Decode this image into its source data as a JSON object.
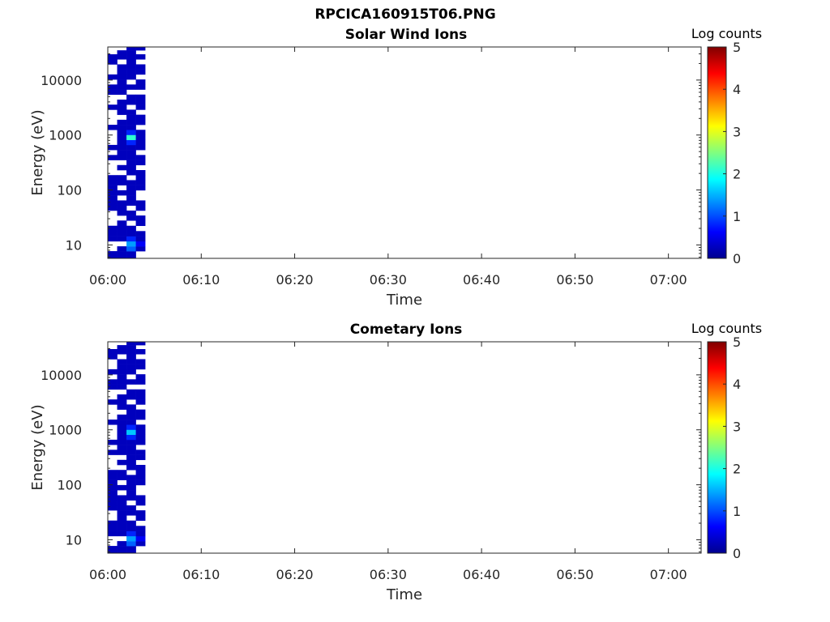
{
  "figure": {
    "title": "RPCICA160915T06.PNG"
  },
  "colorbar": {
    "label": "Log counts",
    "ticks": [
      "0",
      "1",
      "2",
      "3",
      "4",
      "5"
    ],
    "range": [
      0,
      5
    ],
    "colormap": "jet"
  },
  "chart_data": [
    {
      "type": "heatmap",
      "title": "Solar Wind Ions",
      "xlabel": "Time",
      "ylabel": "Energy (eV)",
      "x_ticks": [
        "06:00",
        "06:10",
        "06:20",
        "06:30",
        "06:40",
        "06:50",
        "07:00"
      ],
      "xlim_minutes": [
        0,
        63.5
      ],
      "y_ticks": [
        {
          "value": 10,
          "label": "10"
        },
        {
          "value": 100,
          "label": "100"
        },
        {
          "value": 1000,
          "label": "1000"
        },
        {
          "value": 10000,
          "label": "10000"
        }
      ],
      "ylim": [
        5.7,
        40000
      ],
      "yscale": "log",
      "time_bins": [
        "06:00",
        "06:01",
        "06:02",
        "06:03"
      ],
      "energy_bins_eV": [
        7,
        8.5,
        10.5,
        13,
        16,
        20,
        25,
        31,
        38,
        47,
        58,
        72,
        89,
        110,
        136,
        168,
        207,
        256,
        316,
        390,
        482,
        595,
        735,
        907,
        1120,
        1383,
        1708,
        2109,
        2604,
        3216,
        3971,
        4904,
        6056,
        7478,
        9234,
        11403,
        14081,
        17388,
        21472,
        26515,
        32743,
        37000
      ],
      "log_counts": [
        [
          0.3,
          0,
          0,
          0.3,
          0.3,
          0.3,
          0,
          0,
          0,
          0.3,
          0.3,
          0.3,
          0.3,
          0.3,
          0.3,
          0.3,
          0,
          0,
          0,
          0.3,
          0,
          0.3,
          0,
          0,
          0,
          0.3,
          0,
          0,
          0,
          0.3,
          0,
          0,
          0.3,
          0.3,
          0,
          0.3,
          0,
          0,
          0.3,
          0.3,
          0,
          0
        ],
        [
          0.3,
          0.3,
          0,
          0.3,
          0.3,
          0.3,
          0.3,
          0,
          0.3,
          0.3,
          0.3,
          0,
          0.3,
          0,
          0.3,
          0.3,
          0,
          0.3,
          0,
          0.3,
          0.3,
          0.3,
          0.3,
          0.3,
          0.3,
          0.3,
          0.3,
          0,
          0.3,
          0.3,
          0.3,
          0,
          0.3,
          0.3,
          0.3,
          0.3,
          0.3,
          0.3,
          0,
          0.3,
          0.3,
          0
        ],
        [
          0.3,
          1.1,
          1.4,
          0.8,
          0.3,
          0.3,
          0,
          0.3,
          0.3,
          0,
          0.3,
          0.3,
          0.3,
          0.3,
          0.3,
          0,
          0.3,
          0.3,
          0.3,
          0.3,
          0.3,
          0.3,
          0.8,
          2.1,
          0.8,
          0.3,
          0.3,
          0.3,
          0.3,
          0,
          0.3,
          0.3,
          0,
          0.3,
          0,
          0.3,
          0.3,
          0.3,
          0.3,
          0.3,
          0.3,
          0.3
        ],
        [
          0,
          0.3,
          0.6,
          0.3,
          0.3,
          0,
          0.3,
          0.3,
          0,
          0.3,
          0.3,
          0,
          0,
          0.3,
          0.3,
          0.3,
          0.3,
          0,
          0.3,
          0.3,
          0,
          0.3,
          0.3,
          0.3,
          0.3,
          0,
          0.3,
          0.3,
          0,
          0.3,
          0.3,
          0.3,
          0,
          0.3,
          0.3,
          0,
          0.3,
          0.3,
          0,
          0.3,
          0,
          0.3
        ]
      ]
    },
    {
      "type": "heatmap",
      "title": "Cometary Ions",
      "xlabel": "Time",
      "ylabel": "Energy (eV)",
      "x_ticks": [
        "06:00",
        "06:10",
        "06:20",
        "06:30",
        "06:40",
        "06:50",
        "07:00"
      ],
      "xlim_minutes": [
        0,
        63.5
      ],
      "y_ticks": [
        {
          "value": 10,
          "label": "10"
        },
        {
          "value": 100,
          "label": "100"
        },
        {
          "value": 1000,
          "label": "1000"
        },
        {
          "value": 10000,
          "label": "10000"
        }
      ],
      "ylim": [
        5.7,
        40000
      ],
      "yscale": "log",
      "time_bins": [
        "06:00",
        "06:01",
        "06:02",
        "06:03"
      ],
      "energy_bins_eV": [
        7,
        8.5,
        10.5,
        13,
        16,
        20,
        25,
        31,
        38,
        47,
        58,
        72,
        89,
        110,
        136,
        168,
        207,
        256,
        316,
        390,
        482,
        595,
        735,
        907,
        1120,
        1383,
        1708,
        2109,
        2604,
        3216,
        3971,
        4904,
        6056,
        7478,
        9234,
        11403,
        14081,
        17388,
        21472,
        26515,
        32743,
        37000
      ],
      "log_counts": [
        [
          0.3,
          0,
          0,
          0.3,
          0.3,
          0.3,
          0,
          0,
          0.3,
          0.3,
          0.3,
          0.3,
          0.3,
          0.3,
          0.3,
          0.3,
          0,
          0,
          0,
          0.3,
          0,
          0.3,
          0,
          0,
          0,
          0.3,
          0,
          0,
          0,
          0.3,
          0,
          0,
          0.3,
          0.3,
          0,
          0.3,
          0,
          0,
          0.3,
          0.3,
          0,
          0
        ],
        [
          0.3,
          0.3,
          0,
          0.3,
          0.3,
          0.3,
          0.3,
          0.3,
          0.3,
          0.3,
          0.3,
          0,
          0.3,
          0,
          0.3,
          0.3,
          0,
          0.3,
          0,
          0.3,
          0.3,
          0.3,
          0.3,
          0.3,
          0.3,
          0.3,
          0.3,
          0,
          0.3,
          0.3,
          0.3,
          0,
          0.3,
          0.3,
          0.3,
          0.3,
          0.3,
          0.3,
          0,
          0.3,
          0.3,
          0
        ],
        [
          0.3,
          1.1,
          1.4,
          0.8,
          0.3,
          0.3,
          0,
          0.3,
          0.3,
          0,
          0.3,
          0.3,
          0.3,
          0.3,
          0.3,
          0,
          0.3,
          0.3,
          0.3,
          0.3,
          0.3,
          0.3,
          0.8,
          1.6,
          0.8,
          0.3,
          0.3,
          0.3,
          0.3,
          0,
          0.3,
          0.3,
          0,
          0.3,
          0,
          0.3,
          0.3,
          0.3,
          0.3,
          0.3,
          0.3,
          0.3
        ],
        [
          0,
          0.3,
          0.6,
          0.3,
          0.3,
          0,
          0.3,
          0.3,
          0,
          0.3,
          0.3,
          0,
          0,
          0.3,
          0.3,
          0.3,
          0.3,
          0,
          0.3,
          0.3,
          0,
          0.3,
          0.3,
          0.3,
          0.3,
          0,
          0.3,
          0.3,
          0,
          0.3,
          0.3,
          0.3,
          0,
          0.3,
          0.3,
          0,
          0.3,
          0.3,
          0,
          0.3,
          0,
          0.3
        ]
      ]
    }
  ]
}
